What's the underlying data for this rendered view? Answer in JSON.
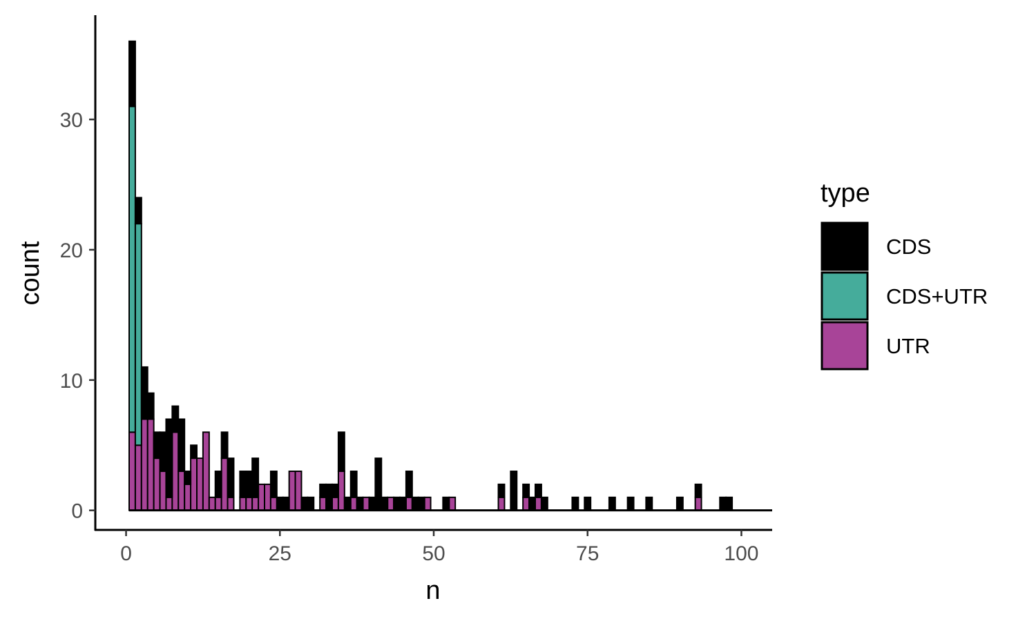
{
  "chart_data": {
    "type": "bar",
    "stacked": true,
    "xlabel": "n",
    "ylabel": "count",
    "xlim": [
      -5,
      105
    ],
    "ylim": [
      -1.5,
      38
    ],
    "x_ticks": [
      0,
      25,
      50,
      75,
      100
    ],
    "y_ticks": [
      0,
      10,
      20,
      30
    ],
    "grid": false,
    "legend": {
      "title": "type",
      "position": "right",
      "entries": [
        {
          "label": "CDS",
          "color": "#000000"
        },
        {
          "label": "CDS+UTR",
          "color": "#45AC9B"
        },
        {
          "label": "UTR",
          "color": "#A84498"
        }
      ]
    },
    "series": [
      {
        "name": "UTR",
        "color": "#A84498",
        "x": [
          1,
          2,
          3,
          4,
          5,
          6,
          7,
          8,
          9,
          10,
          11,
          12,
          13,
          14,
          15,
          16,
          17,
          19,
          20,
          21,
          22,
          23,
          24,
          27,
          28,
          32,
          34,
          35,
          37,
          39,
          43,
          46,
          49,
          53,
          61,
          65,
          67,
          93
        ],
        "values": [
          6,
          5,
          7,
          7,
          4,
          3,
          1,
          6,
          3,
          2,
          4,
          4,
          6,
          1,
          1,
          4,
          1,
          1,
          1,
          1,
          2,
          2,
          1,
          3,
          3,
          1,
          1,
          3,
          1,
          1,
          1,
          1,
          1,
          1,
          1,
          1,
          1,
          1
        ]
      },
      {
        "name": "CDS+UTR",
        "color": "#45AC9B",
        "x": [
          1,
          2
        ],
        "values": [
          25,
          17
        ]
      },
      {
        "name": "CDS",
        "color": "#000000",
        "x": [
          1,
          2,
          3,
          4,
          5,
          6,
          7,
          8,
          9,
          10,
          11,
          12,
          13,
          14,
          15,
          16,
          17,
          18,
          19,
          20,
          21,
          22,
          23,
          24,
          25,
          26,
          27,
          28,
          29,
          30,
          31,
          32,
          33,
          34,
          35,
          36,
          37,
          38,
          39,
          40,
          41,
          42,
          44,
          45,
          46,
          47,
          48,
          52,
          53,
          61,
          63,
          65,
          66,
          67,
          68,
          73,
          75,
          79,
          82,
          85,
          90,
          93,
          97,
          98
        ],
        "values": [
          5,
          2,
          4,
          2,
          2,
          3,
          6,
          2,
          4,
          1,
          1,
          0,
          0,
          0,
          2,
          2,
          3,
          0,
          2,
          2,
          3,
          0,
          0,
          2,
          1,
          1,
          0,
          0,
          1,
          1,
          0,
          1,
          2,
          1,
          3,
          1,
          2,
          1,
          0,
          1,
          4,
          1,
          1,
          1,
          2,
          1,
          1,
          1,
          0,
          1,
          3,
          1,
          1,
          1,
          1,
          1,
          1,
          1,
          1,
          1,
          1,
          1,
          1,
          1
        ]
      }
    ]
  }
}
